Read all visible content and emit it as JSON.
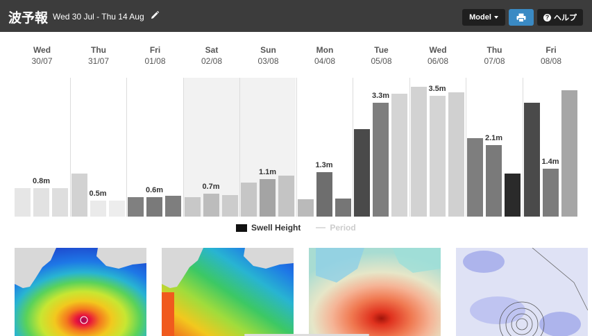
{
  "header": {
    "title": "波予報",
    "date_range": "Wed 30 Jul - Thu 14 Aug",
    "model_label": "Model",
    "help_label": "ヘルプ",
    "help_symbol": "?",
    "background": "#3c3c3c"
  },
  "days": [
    {
      "name": "Wed",
      "date": "30/07"
    },
    {
      "name": "Thu",
      "date": "31/07"
    },
    {
      "name": "Fri",
      "date": "01/08"
    },
    {
      "name": "Sat",
      "date": "02/08"
    },
    {
      "name": "Sun",
      "date": "03/08"
    },
    {
      "name": "Mon",
      "date": "04/08"
    },
    {
      "name": "Tue",
      "date": "05/08"
    },
    {
      "name": "Wed",
      "date": "06/08"
    },
    {
      "name": "Thu",
      "date": "07/08"
    },
    {
      "name": "Fri",
      "date": "08/08"
    }
  ],
  "legend": {
    "swell_label": "Swell Height",
    "period_label": "Period"
  },
  "chart_data": {
    "type": "bar",
    "y_unit": "m",
    "ylim": [
      0,
      3.9
    ],
    "grid": false,
    "legend_position": "bottom",
    "day_labels": [
      "0.8m",
      "0.5m",
      "0.6m",
      "0.7m",
      "1.1m",
      "1.3m",
      "3.3m",
      "3.5m",
      "2.1m",
      "1.4m"
    ],
    "series": [
      {
        "name": "Swell Height",
        "values": [
          0.8,
          0.8,
          0.8,
          1.2,
          0.45,
          0.45,
          0.55,
          0.55,
          0.58,
          0.55,
          0.65,
          0.6,
          0.95,
          1.05,
          1.15,
          0.48,
          1.25,
          0.5,
          2.45,
          3.2,
          3.45,
          3.65,
          3.4,
          3.5,
          2.2,
          2.0,
          1.2,
          3.2,
          1.35,
          3.55
        ],
        "shades": [
          "#e6e6e6",
          "#e2e2e2",
          "#dedede",
          "#d2d2d2",
          "#eaeaea",
          "#ededed",
          "#808080",
          "#7a7a7a",
          "#7e7e7e",
          "#c8c8c8",
          "#bcbcbc",
          "#cccccc",
          "#c6c6c6",
          "#a4a4a4",
          "#c4c4c4",
          "#bababa",
          "#6e6e6e",
          "#767676",
          "#4a4a4a",
          "#7e7e7e",
          "#d4d4d4",
          "#d2d2d2",
          "#d4d4d4",
          "#d0d0d0",
          "#7e7e7e",
          "#7a7a7a",
          "#2a2a2a",
          "#4a4a4a",
          "#7c7c7c",
          "#a6a6a6"
        ]
      }
    ]
  },
  "colors": {
    "weekend_bg": "#f2f2f2",
    "accent": "#3a8ac4"
  },
  "maps": [
    {
      "name": "wave-height-map-1"
    },
    {
      "name": "wave-height-map-2"
    },
    {
      "name": "wind-map"
    },
    {
      "name": "pressure-map"
    }
  ]
}
